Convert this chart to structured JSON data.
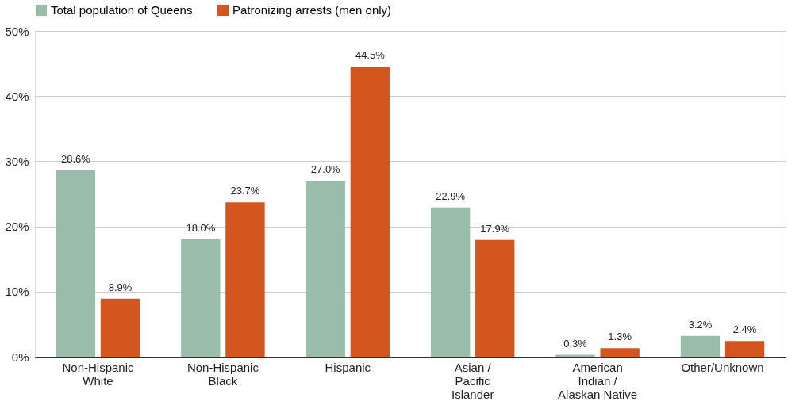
{
  "chart_data": {
    "type": "bar",
    "categories": [
      "Non-Hispanic White",
      "Non-Hispanic Black",
      "Hispanic",
      "Asian / Pacific Islander",
      "American Indian / Alaskan Native",
      "Other/Unknown"
    ],
    "series": [
      {
        "name": "Total population of Queens",
        "color": "#9abcab",
        "values": [
          28.6,
          18.0,
          27.0,
          22.9,
          0.3,
          3.2
        ],
        "value_labels": [
          "28.6%",
          "18.0%",
          "27.0%",
          "22.9%",
          "0.3%",
          "3.2%"
        ]
      },
      {
        "name": "Patronizing arrests (men only)",
        "color": "#d4561e",
        "values": [
          8.9,
          23.7,
          44.5,
          17.9,
          1.3,
          2.4
        ],
        "value_labels": [
          "8.9%",
          "23.7%",
          "44.5%",
          "17.9%",
          "1.3%",
          "2.4%"
        ]
      }
    ],
    "ylim": [
      0,
      50
    ],
    "yticks": [
      {
        "value": 0,
        "label": "0%"
      },
      {
        "value": 10,
        "label": "10%"
      },
      {
        "value": 20,
        "label": "20%"
      },
      {
        "value": 30,
        "label": "30%"
      },
      {
        "value": 40,
        "label": "40%"
      },
      {
        "value": 50,
        "label": "50%"
      }
    ],
    "grid": "y",
    "legend": "top"
  }
}
